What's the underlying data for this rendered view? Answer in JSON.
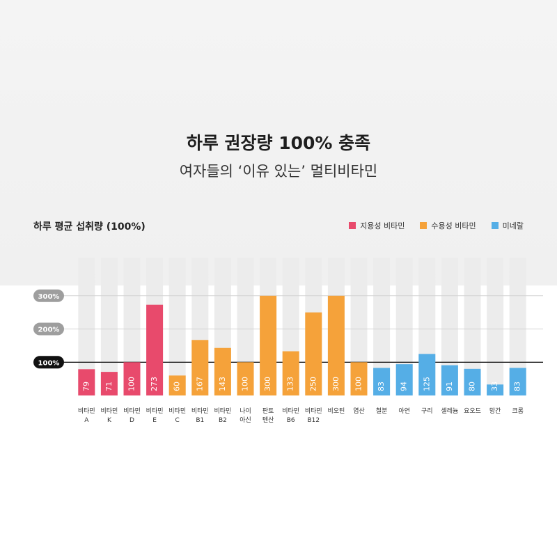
{
  "headline": "하루 권장량 100% 충족",
  "subline": "여자들의 ‘이유 있는’ 멀티비타민",
  "chart_data": {
    "type": "bar",
    "title": "하루 평균 섭취량 (100%)",
    "xlabel": "",
    "ylabel": "",
    "ylim": [
      0,
      330
    ],
    "reference_lines": [
      {
        "value": 300,
        "label": "300%"
      },
      {
        "value": 200,
        "label": "200%"
      },
      {
        "value": 100,
        "label": "100%"
      }
    ],
    "legend_position": "top-right",
    "groups": [
      {
        "name": "지용성 비타민",
        "color": "#e84a6c"
      },
      {
        "name": "수용성 비타민",
        "color": "#f5a23a"
      },
      {
        "name": "미네랄",
        "color": "#55aee6"
      }
    ],
    "categories": [
      {
        "line1": "비타민",
        "line2": "A",
        "value": 79,
        "group": 0
      },
      {
        "line1": "비타민",
        "line2": "K",
        "value": 71,
        "group": 0
      },
      {
        "line1": "비타민",
        "line2": "D",
        "value": 100,
        "group": 0
      },
      {
        "line1": "비타민",
        "line2": "E",
        "value": 273,
        "group": 0
      },
      {
        "line1": "비타민",
        "line2": "C",
        "value": 60,
        "group": 1
      },
      {
        "line1": "비타민",
        "line2": "B1",
        "value": 167,
        "group": 1
      },
      {
        "line1": "비타민",
        "line2": "B2",
        "value": 143,
        "group": 1
      },
      {
        "line1": "나이",
        "line2": "아신",
        "value": 100,
        "group": 1
      },
      {
        "line1": "판토",
        "line2": "텐산",
        "value": 300,
        "group": 1
      },
      {
        "line1": "비타민",
        "line2": "B6",
        "value": 133,
        "group": 1
      },
      {
        "line1": "비타민",
        "line2": "B12",
        "value": 250,
        "group": 1
      },
      {
        "line1": "비오틴",
        "line2": "",
        "value": 300,
        "group": 1
      },
      {
        "line1": "엽산",
        "line2": "",
        "value": 100,
        "group": 1
      },
      {
        "line1": "철분",
        "line2": "",
        "value": 83,
        "group": 2
      },
      {
        "line1": "아연",
        "line2": "",
        "value": 94,
        "group": 2
      },
      {
        "line1": "구리",
        "line2": "",
        "value": 125,
        "group": 2
      },
      {
        "line1": "셀레늄",
        "line2": "",
        "value": 91,
        "group": 2
      },
      {
        "line1": "요오드",
        "line2": "",
        "value": 80,
        "group": 2
      },
      {
        "line1": "망간",
        "line2": "",
        "value": 33,
        "group": 2
      },
      {
        "line1": "크롬",
        "line2": "",
        "value": 83,
        "group": 2
      }
    ]
  }
}
